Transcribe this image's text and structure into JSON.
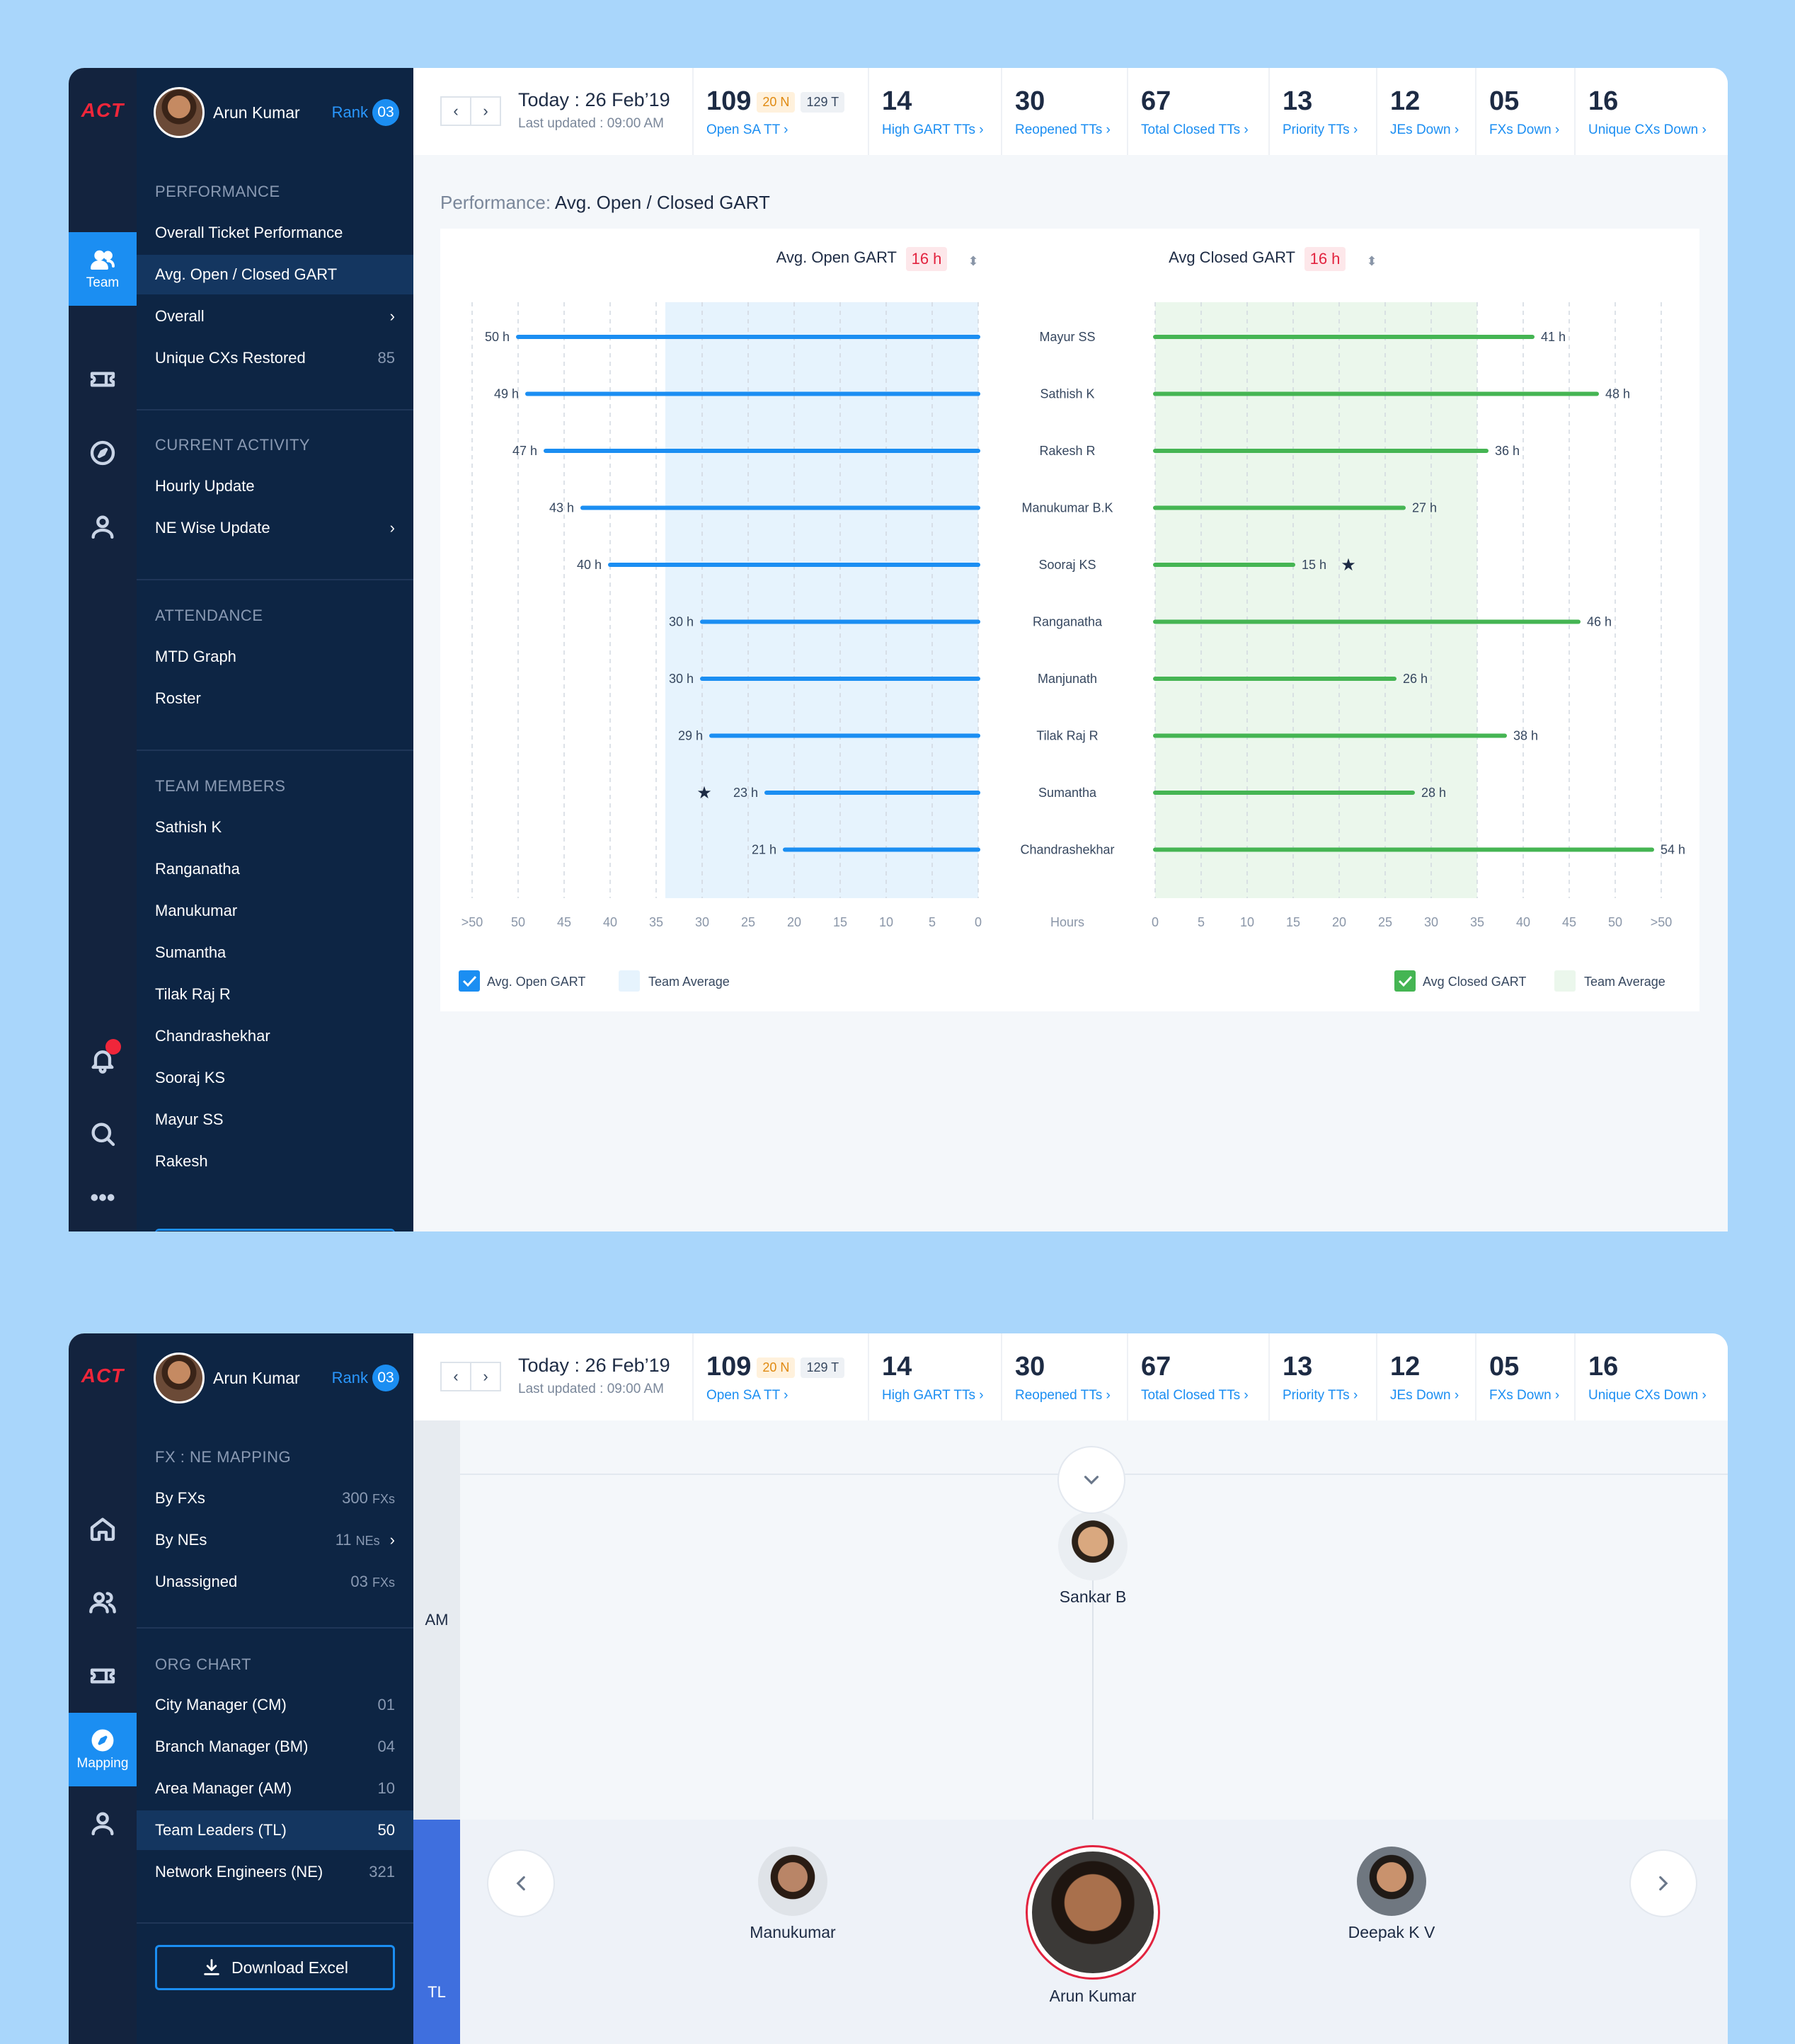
{
  "common": {
    "logo": "ACT",
    "user": {
      "name": "Arun Kumar",
      "rank_label": "Rank",
      "rank_value": "03"
    },
    "date": {
      "today": "Today : 26 Feb’19",
      "updated": "Last updated : 09:00 AM"
    },
    "stats": [
      {
        "value": "109",
        "label": "Open SA TT",
        "chip_n": "20 N",
        "chip_t": "129 T"
      },
      {
        "value": "14",
        "label": "High GART TTs"
      },
      {
        "value": "30",
        "label": "Reopened TTs"
      },
      {
        "value": "67",
        "label": "Total Closed TTs"
      },
      {
        "value": "13",
        "label": "Priority TTs"
      },
      {
        "value": "12",
        "label": "JEs Down"
      },
      {
        "value": "05",
        "label": "FXs Down"
      },
      {
        "value": "16",
        "label": "Unique CXs Down"
      }
    ]
  },
  "screen1": {
    "rail": {
      "team_label": "Team"
    },
    "sidebar": {
      "performance_title": "PERFORMANCE",
      "performance": [
        {
          "label": "Overall Ticket Performance"
        },
        {
          "label": "Avg. Open / Closed GART"
        },
        {
          "label": "Overall"
        },
        {
          "label": "Unique CXs Restored",
          "count": "85"
        }
      ],
      "activity_title": "CURRENT ACTIVITY",
      "activity": [
        {
          "label": "Hourly Update"
        },
        {
          "label": "NE Wise Update"
        }
      ],
      "attendance_title": "ATTENDANCE",
      "attendance": [
        {
          "label": "MTD Graph"
        },
        {
          "label": "Roster"
        }
      ],
      "team_title": "TEAM MEMBERS",
      "team": [
        "Sathish K",
        "Ranganatha",
        "Manukumar",
        "Sumantha",
        "Tilak Raj R",
        "Chandrashekhar",
        "Sooraj KS",
        "Mayur SS",
        "Rakesh"
      ]
    },
    "page_title_prefix": "Performance:",
    "page_title": "Avg. Open / Closed GART",
    "open_header": "Avg. Open GART",
    "open_badge": "16 h",
    "closed_header": "Avg Closed GART",
    "closed_badge": "16 h",
    "legend": {
      "open_check": "Avg. Open GART",
      "open_avg": "Team Average",
      "closed_check": "Avg Closed GART",
      "closed_avg": "Team Average"
    }
  },
  "chart_data": [
    {
      "type": "bar",
      "orientation": "horizontal",
      "direction": "right-to-left",
      "title": "Avg. Open GART",
      "categories": [
        "Mayur SS",
        "Sathish K",
        "Rakesh R",
        "Manukumar B.K",
        "Sooraj KS",
        "Ranganatha",
        "Manjunath",
        "Tilak Raj R",
        "Sumantha",
        "Chandrashekhar"
      ],
      "values": [
        50,
        49,
        47,
        43,
        40,
        30,
        30,
        29,
        23,
        21
      ],
      "value_suffix": " h",
      "starred_index": 8,
      "team_average_band": [
        0,
        34
      ],
      "x_ticks": [
        ">50",
        "50",
        "45",
        "40",
        "35",
        "30",
        "25",
        "20",
        "15",
        "10",
        "5",
        "0"
      ],
      "xlim": [
        0,
        55
      ],
      "color": "#1b8ef2",
      "band_color": "#e6f3fd",
      "grid": true
    },
    {
      "type": "bar",
      "orientation": "horizontal",
      "title": "Avg Closed GART",
      "categories": [
        "Mayur SS",
        "Sathish K",
        "Rakesh R",
        "Manukumar B.K",
        "Sooraj KS",
        "Ranganatha",
        "Manjunath",
        "Tilak Raj R",
        "Sumantha",
        "Chandrashekhar"
      ],
      "values": [
        41,
        48,
        36,
        27,
        15,
        46,
        26,
        38,
        28,
        54
      ],
      "value_suffix": " h",
      "starred_index": 4,
      "team_average_band": [
        0,
        35
      ],
      "x_ticks": [
        "0",
        "5",
        "10",
        "15",
        "20",
        "25",
        "30",
        "35",
        "40",
        "45",
        "50",
        ">50"
      ],
      "xlim": [
        0,
        55
      ],
      "xlabel": "Hours",
      "color": "#45b553",
      "band_color": "#ebf7ec",
      "grid": true
    }
  ],
  "screen2": {
    "rail": {
      "mapping_label": "Mapping"
    },
    "sidebar": {
      "fx_title": "FX : NE MAPPING",
      "fx": [
        {
          "label": "By FXs",
          "count": "300",
          "unit": "FXs"
        },
        {
          "label": "By NEs",
          "count": "11",
          "unit": "NEs"
        },
        {
          "label": "Unassigned",
          "count": "03",
          "unit": "FXs"
        }
      ],
      "org_title": "ORG CHART",
      "org": [
        {
          "label": "City Manager (CM)",
          "count": "01"
        },
        {
          "label": "Branch Manager (BM)",
          "count": "04"
        },
        {
          "label": "Area Manager (AM)",
          "count": "10"
        },
        {
          "label": "Team Leaders (TL)",
          "count": "50"
        },
        {
          "label": "Network Engineers (NE)",
          "count": "321"
        }
      ],
      "download": "Download Excel"
    },
    "org": {
      "am_label": "AM",
      "tl_label": "TL",
      "am_person": "Sankar B",
      "tl_people": [
        "Manukumar",
        "Arun Kumar",
        "Deepak K V"
      ]
    }
  }
}
